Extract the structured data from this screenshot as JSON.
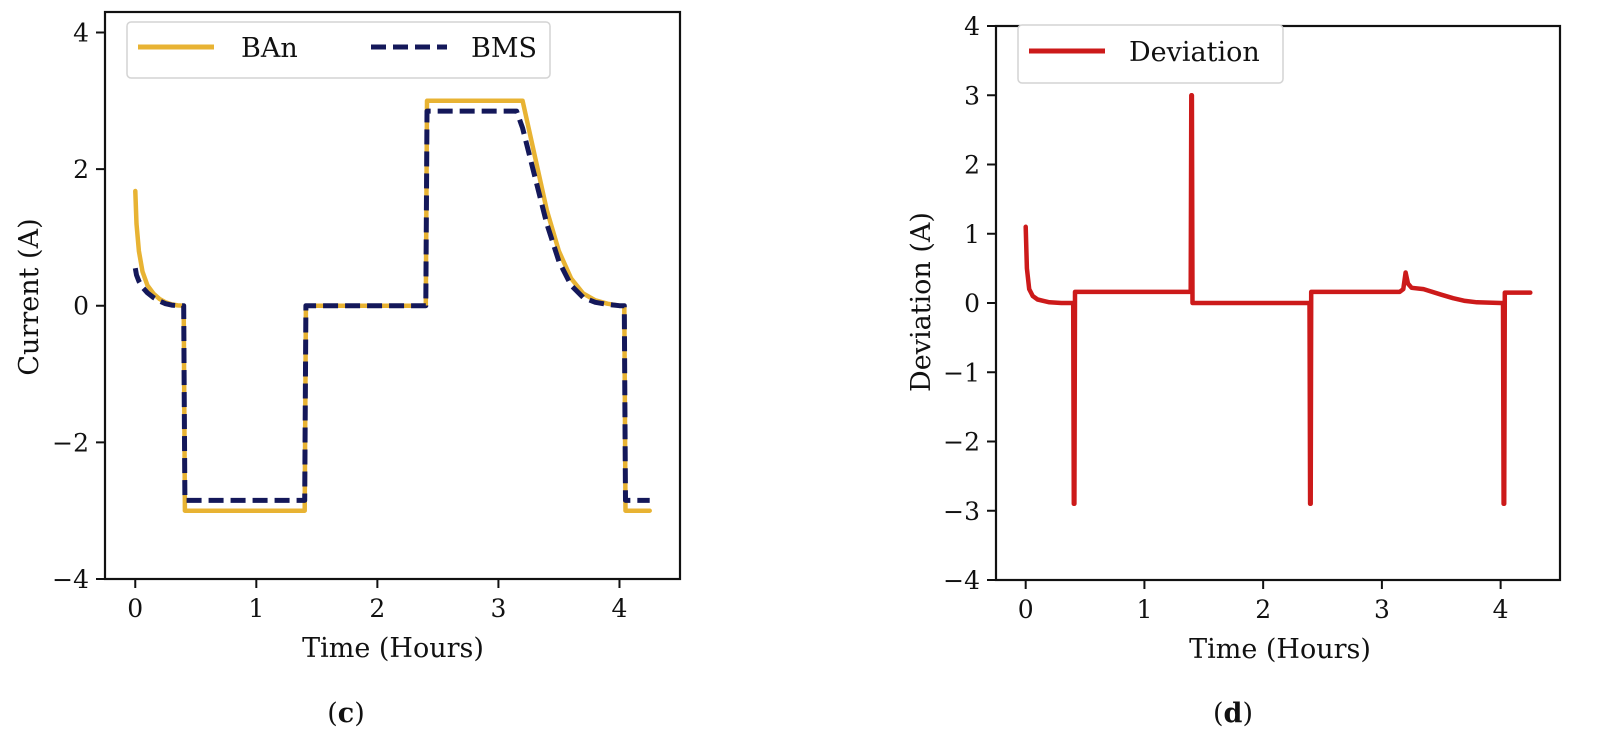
{
  "chart_data": [
    {
      "type": "line",
      "panel_label": "c",
      "title": "",
      "xlabel": "Time (Hours)",
      "ylabel": "Current (A)",
      "xlim": [
        -0.25,
        4.5
      ],
      "ylim": [
        -4,
        4.3
      ],
      "xticks": [
        0,
        1,
        2,
        3,
        4
      ],
      "yticks": [
        -4,
        -2,
        0,
        2,
        4
      ],
      "xtick_labels": [
        "0",
        "1",
        "2",
        "3",
        "4"
      ],
      "ytick_labels": [
        "−4",
        "−2",
        "0",
        "2",
        "4"
      ],
      "grid": false,
      "legend": {
        "position": "top",
        "columns": 2,
        "entries": [
          "BAn",
          "BMS"
        ]
      },
      "series": [
        {
          "name": "BAn",
          "color": "#e8b333",
          "style": "solid",
          "x": [
            0,
            0.01,
            0.03,
            0.06,
            0.1,
            0.15,
            0.2,
            0.25,
            0.3,
            0.35,
            0.4,
            0.405,
            0.41,
            0.42,
            1.4,
            1.405,
            1.41,
            2.4,
            2.405,
            2.41,
            3.2,
            3.3,
            3.4,
            3.5,
            3.6,
            3.7,
            3.8,
            3.9,
            4.0,
            4.04,
            4.045,
            4.05,
            4.06,
            4.25
          ],
          "y": [
            1.68,
            1.2,
            0.8,
            0.5,
            0.3,
            0.18,
            0.1,
            0.05,
            0.02,
            0.005,
            0.0,
            -1.5,
            -3.0,
            -3.0,
            -3.0,
            -1.5,
            0.0,
            0.0,
            1.5,
            3.0,
            3.0,
            2.2,
            1.4,
            0.8,
            0.4,
            0.18,
            0.08,
            0.03,
            0.0,
            0.0,
            -1.5,
            -3.0,
            -3.0,
            -3.0
          ]
        },
        {
          "name": "BMS",
          "color": "#14185a",
          "style": "dashed",
          "x": [
            0,
            0.01,
            0.03,
            0.06,
            0.1,
            0.15,
            0.2,
            0.25,
            0.3,
            0.35,
            0.4,
            0.405,
            0.41,
            0.42,
            1.4,
            1.405,
            1.41,
            2.4,
            2.405,
            2.41,
            3.15,
            3.2,
            3.3,
            3.4,
            3.5,
            3.6,
            3.7,
            3.8,
            3.9,
            4.0,
            4.04,
            4.045,
            4.05,
            4.06,
            4.25
          ],
          "y": [
            0.55,
            0.45,
            0.36,
            0.27,
            0.19,
            0.12,
            0.07,
            0.03,
            0.01,
            0.0,
            0.0,
            -1.5,
            -2.85,
            -2.85,
            -2.85,
            -1.4,
            0.0,
            0.0,
            1.4,
            2.85,
            2.85,
            2.6,
            1.9,
            1.2,
            0.65,
            0.3,
            0.12,
            0.05,
            0.02,
            0.0,
            0.0,
            -1.5,
            -2.85,
            -2.85,
            -2.85
          ]
        }
      ]
    },
    {
      "type": "line",
      "panel_label": "d",
      "title": "",
      "xlabel": "Time (Hours)",
      "ylabel": "Deviation (A)",
      "xlim": [
        -0.25,
        4.5
      ],
      "ylim": [
        -4,
        4
      ],
      "xticks": [
        0,
        1,
        2,
        3,
        4
      ],
      "yticks": [
        -4,
        -3,
        -2,
        -1,
        0,
        1,
        2,
        3,
        4
      ],
      "xtick_labels": [
        "0",
        "1",
        "2",
        "3",
        "4"
      ],
      "ytick_labels": [
        "−4",
        "−3",
        "−2",
        "−1",
        "0",
        "1",
        "2",
        "3",
        "4"
      ],
      "grid": false,
      "legend": {
        "position": "top-left",
        "columns": 1,
        "entries": [
          "Deviation"
        ]
      },
      "series": [
        {
          "name": "Deviation",
          "color": "#cc1a1a",
          "style": "solid",
          "x": [
            0,
            0.01,
            0.03,
            0.06,
            0.1,
            0.15,
            0.2,
            0.3,
            0.4,
            0.405,
            0.41,
            0.415,
            0.42,
            1.39,
            1.395,
            1.4,
            1.405,
            2.39,
            2.395,
            2.4,
            2.405,
            2.41,
            3.15,
            3.18,
            3.2,
            3.22,
            3.25,
            3.35,
            3.5,
            3.6,
            3.7,
            3.8,
            4.0,
            4.02,
            4.025,
            4.03,
            4.035,
            4.04,
            4.25
          ],
          "y": [
            1.1,
            0.5,
            0.2,
            0.1,
            0.05,
            0.03,
            0.01,
            0.0,
            0.0,
            -2.9,
            -2.9,
            0.16,
            0.16,
            0.16,
            3.0,
            3.0,
            0.0,
            0.0,
            -2.9,
            -2.9,
            0.16,
            0.16,
            0.16,
            0.2,
            0.44,
            0.28,
            0.22,
            0.2,
            0.12,
            0.07,
            0.03,
            0.01,
            0.0,
            0.0,
            -2.9,
            -2.9,
            0.15,
            0.15,
            0.15
          ]
        }
      ]
    }
  ]
}
